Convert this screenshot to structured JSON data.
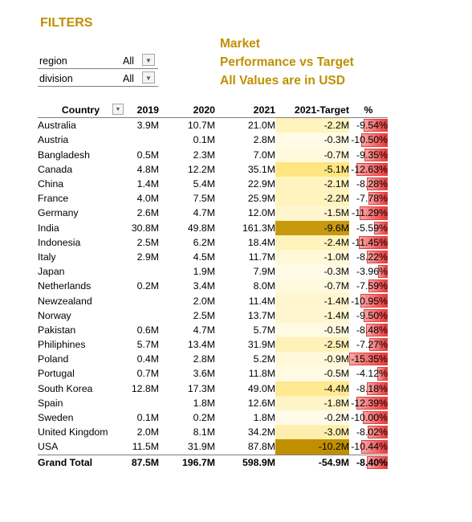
{
  "filters": {
    "title": "FILTERS",
    "items": [
      {
        "label": "region",
        "value": "All"
      },
      {
        "label": "division",
        "value": "All"
      }
    ]
  },
  "header": {
    "line1": "Market",
    "line2": "Performance vs Target",
    "line3": "All Values are in USD"
  },
  "colors": {
    "title_gold": "#bf8f00",
    "target_low": "#fffbe8",
    "target_high": "#bf8f00",
    "pct_bar": "#e83a3a"
  },
  "table": {
    "columns": [
      "Country",
      "2019",
      "2020",
      "2021",
      "2021-Target",
      "%"
    ],
    "rows": [
      {
        "country": "Australia",
        "y2019": "3.9M",
        "y2020": "10.7M",
        "y2021": "21.0M",
        "target": "-2.2M",
        "pct": "-9.54%"
      },
      {
        "country": "Austria",
        "y2019": "",
        "y2020": "0.1M",
        "y2021": "2.8M",
        "target": "-0.3M",
        "pct": "-10.50%"
      },
      {
        "country": "Bangladesh",
        "y2019": "0.5M",
        "y2020": "2.3M",
        "y2021": "7.0M",
        "target": "-0.7M",
        "pct": "-9.35%"
      },
      {
        "country": "Canada",
        "y2019": "4.8M",
        "y2020": "12.2M",
        "y2021": "35.1M",
        "target": "-5.1M",
        "pct": "-12.63%"
      },
      {
        "country": "China",
        "y2019": "1.4M",
        "y2020": "5.4M",
        "y2021": "22.9M",
        "target": "-2.1M",
        "pct": "-8.28%"
      },
      {
        "country": "France",
        "y2019": "4.0M",
        "y2020": "7.5M",
        "y2021": "25.9M",
        "target": "-2.2M",
        "pct": "-7.78%"
      },
      {
        "country": "Germany",
        "y2019": "2.6M",
        "y2020": "4.7M",
        "y2021": "12.0M",
        "target": "-1.5M",
        "pct": "-11.29%"
      },
      {
        "country": "India",
        "y2019": "30.8M",
        "y2020": "49.8M",
        "y2021": "161.3M",
        "target": "-9.6M",
        "pct": "-5.59%"
      },
      {
        "country": "Indonesia",
        "y2019": "2.5M",
        "y2020": "6.2M",
        "y2021": "18.4M",
        "target": "-2.4M",
        "pct": "-11.45%"
      },
      {
        "country": "Italy",
        "y2019": "2.9M",
        "y2020": "4.5M",
        "y2021": "11.7M",
        "target": "-1.0M",
        "pct": "-8.22%"
      },
      {
        "country": "Japan",
        "y2019": "",
        "y2020": "1.9M",
        "y2021": "7.9M",
        "target": "-0.3M",
        "pct": "-3.96%"
      },
      {
        "country": "Netherlands",
        "y2019": "0.2M",
        "y2020": "3.4M",
        "y2021": "8.0M",
        "target": "-0.7M",
        "pct": "-7.59%"
      },
      {
        "country": "Newzealand",
        "y2019": "",
        "y2020": "2.0M",
        "y2021": "11.4M",
        "target": "-1.4M",
        "pct": "-10.95%"
      },
      {
        "country": "Norway",
        "y2019": "",
        "y2020": "2.5M",
        "y2021": "13.7M",
        "target": "-1.4M",
        "pct": "-9.50%"
      },
      {
        "country": "Pakistan",
        "y2019": "0.6M",
        "y2020": "4.7M",
        "y2021": "5.7M",
        "target": "-0.5M",
        "pct": "-8.48%"
      },
      {
        "country": "Philiphines",
        "y2019": "5.7M",
        "y2020": "13.4M",
        "y2021": "31.9M",
        "target": "-2.5M",
        "pct": "-7.27%"
      },
      {
        "country": "Poland",
        "y2019": "0.4M",
        "y2020": "2.8M",
        "y2021": "5.2M",
        "target": "-0.9M",
        "pct": "-15.35%"
      },
      {
        "country": "Portugal",
        "y2019": "0.7M",
        "y2020": "3.6M",
        "y2021": "11.8M",
        "target": "-0.5M",
        "pct": "-4.12%"
      },
      {
        "country": "South Korea",
        "y2019": "12.8M",
        "y2020": "17.3M",
        "y2021": "49.0M",
        "target": "-4.4M",
        "pct": "-8.18%"
      },
      {
        "country": "Spain",
        "y2019": "",
        "y2020": "1.8M",
        "y2021": "12.6M",
        "target": "-1.8M",
        "pct": "-12.39%"
      },
      {
        "country": "Sweden",
        "y2019": "0.1M",
        "y2020": "0.2M",
        "y2021": "1.8M",
        "target": "-0.2M",
        "pct": "-10.00%"
      },
      {
        "country": "United Kingdom",
        "y2019": "2.0M",
        "y2020": "8.1M",
        "y2021": "34.2M",
        "target": "-3.0M",
        "pct": "-8.02%"
      },
      {
        "country": "USA",
        "y2019": "11.5M",
        "y2020": "31.9M",
        "y2021": "87.8M",
        "target": "-10.2M",
        "pct": "-10.44%"
      }
    ],
    "total": {
      "country": "Grand Total",
      "y2019": "87.5M",
      "y2020": "196.7M",
      "y2021": "598.9M",
      "target": "-54.9M",
      "pct": "-8.40%"
    }
  }
}
